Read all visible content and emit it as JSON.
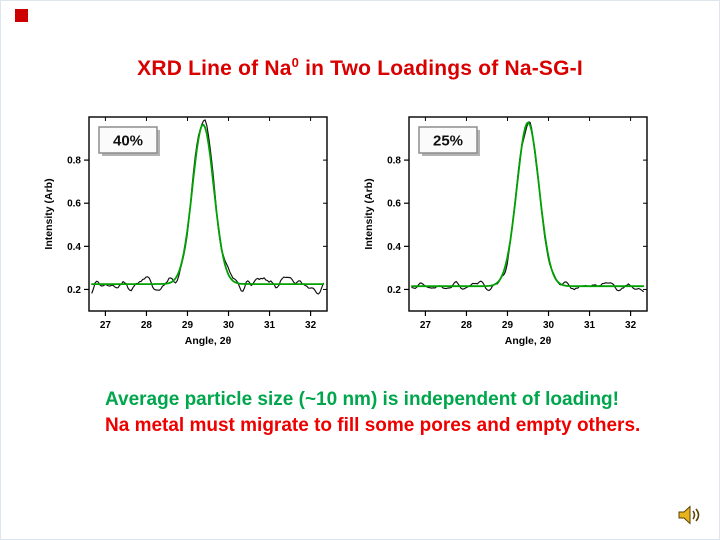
{
  "slide": {
    "corner_marker_color": "#cc0000",
    "title": {
      "prefix": "XRD Line of Na",
      "superscript": "0",
      "suffix": " in Two Loadings of Na-SG-I",
      "color": "#d90000"
    },
    "captions": {
      "green": {
        "text": "Average particle size (~10 nm) is independent of loading!",
        "color": "#00a64c"
      },
      "red": {
        "text": "Na metal must migrate to fill some pores and empty others.",
        "color": "#ee0000"
      }
    },
    "audio_icon": "speaker-icon",
    "audio_icon_color": "#e8b41e"
  },
  "chart_data": [
    {
      "type": "line",
      "label": "40%",
      "xlabel": "Angle, 2θ",
      "ylabel": "Intensity (Arb)",
      "xlim": [
        26.6,
        32.4
      ],
      "ylim": [
        0.1,
        1.0
      ],
      "x_ticks": [
        27,
        28,
        29,
        30,
        31,
        32
      ],
      "y_ticks": [
        0.2,
        0.4,
        0.6,
        0.8
      ],
      "grid": false,
      "legend": "none",
      "series": [
        {
          "name": "data",
          "color": "#111111",
          "style": "noisy",
          "baseline": 0.225,
          "center": 29.38,
          "sigma": 0.26,
          "amplitude": 0.74,
          "noise": 0.03,
          "seed": 7
        },
        {
          "name": "fit",
          "color": "#00a000",
          "style": "smooth",
          "baseline": 0.225,
          "center": 29.38,
          "sigma": 0.26,
          "amplitude": 0.74
        }
      ]
    },
    {
      "type": "line",
      "label": "25%",
      "xlabel": "Angle, 2θ",
      "ylabel": "Intensity (Arb)",
      "xlim": [
        26.6,
        32.4
      ],
      "ylim": [
        0.1,
        1.0
      ],
      "x_ticks": [
        27,
        28,
        29,
        30,
        31,
        32
      ],
      "y_ticks": [
        0.2,
        0.4,
        0.6,
        0.8
      ],
      "grid": false,
      "legend": "none",
      "series": [
        {
          "name": "data",
          "color": "#111111",
          "style": "noisy",
          "baseline": 0.215,
          "center": 29.5,
          "sigma": 0.27,
          "amplitude": 0.76,
          "noise": 0.022,
          "seed": 21
        },
        {
          "name": "fit",
          "color": "#00a000",
          "style": "smooth",
          "baseline": 0.215,
          "center": 29.5,
          "sigma": 0.27,
          "amplitude": 0.76
        }
      ]
    }
  ]
}
